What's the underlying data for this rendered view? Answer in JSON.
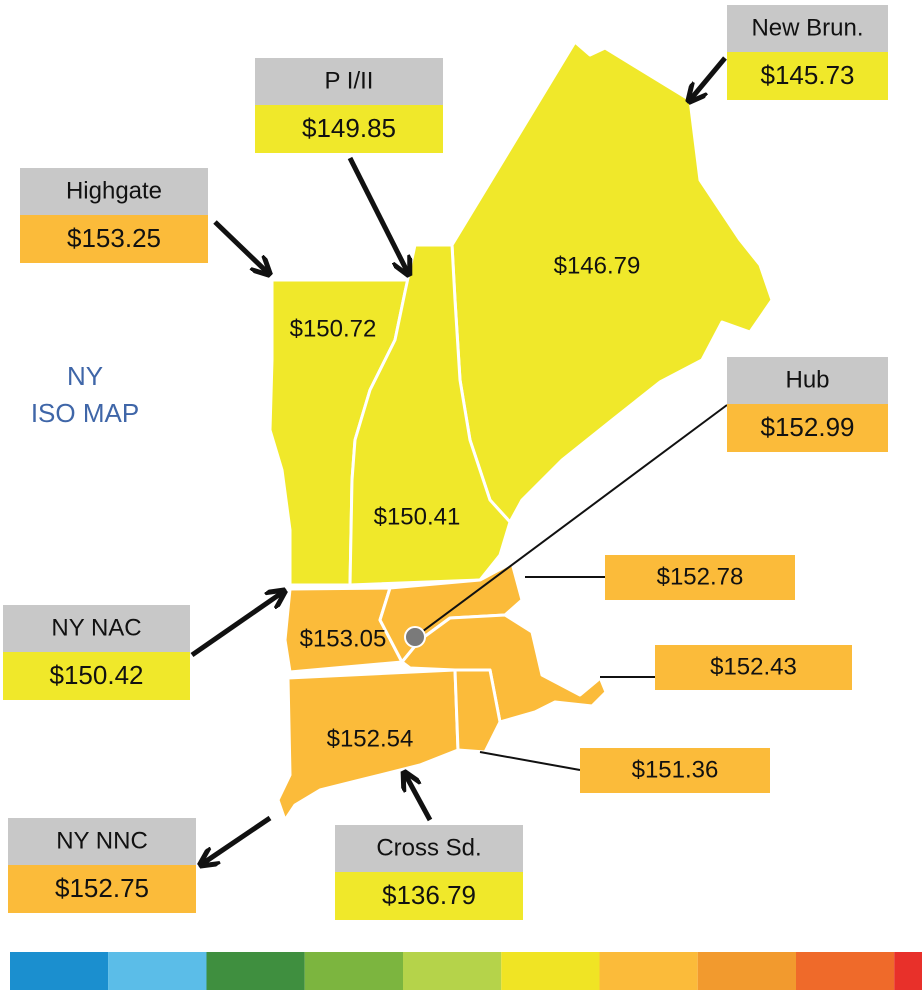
{
  "map_label": [
    "NY",
    "ISO MAP"
  ],
  "zones": [
    {
      "label": "$146.79",
      "color": "#f0e82a"
    },
    {
      "label": "$150.72",
      "color": "#f0e82a"
    },
    {
      "label": "$150.41",
      "color": "#f0e82a"
    },
    {
      "label": "$153.05",
      "color": "#fbbb3a"
    },
    {
      "label": "$152.54",
      "color": "#fbbb3a"
    },
    {
      "label": "$152.78",
      "color": "#fbbb3a"
    },
    {
      "label": "$152.43",
      "color": "#fbbb3a"
    },
    {
      "label": "$151.36",
      "color": "#fbbb3a"
    }
  ],
  "interfaces": [
    {
      "name": "New Brun.",
      "price": "$145.73",
      "color": "#f0e82a"
    },
    {
      "name": "P I/II",
      "price": "$149.85",
      "color": "#f0e82a"
    },
    {
      "name": "Highgate",
      "price": "$153.25",
      "color": "#fbbb3a"
    },
    {
      "name": "Hub",
      "price": "$152.99",
      "color": "#fbbb3a"
    },
    {
      "name": "NY NAC",
      "price": "$150.42",
      "color": "#f0e82a"
    },
    {
      "name": "NY NNC",
      "price": "$152.75",
      "color": "#fbbb3a"
    },
    {
      "name": "Cross Sd.",
      "price": "$136.79",
      "color": "#f0e82a"
    }
  ],
  "legend_colors": [
    "#1b8fcf",
    "#5bbde8",
    "#3f8f3f",
    "#7cb53f",
    "#b5d34a",
    "#f0e424",
    "#fbbb3a",
    "#f29a2e",
    "#ef6a2a",
    "#e8302a"
  ]
}
